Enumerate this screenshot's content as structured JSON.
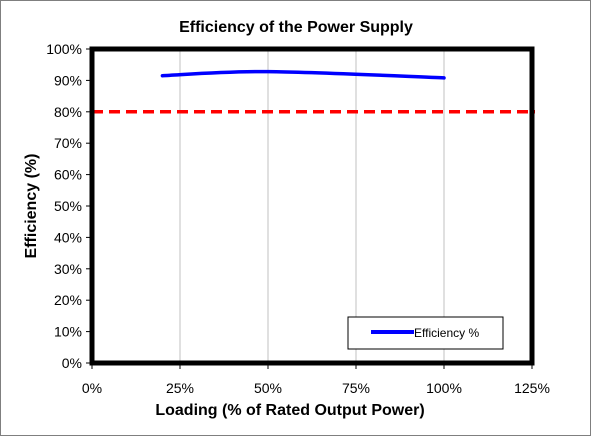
{
  "chart_data": {
    "type": "line",
    "title": "Efficiency of the Power Supply",
    "xlabel": "Loading (% of Rated Output Power)",
    "ylabel": "Efficiency (%)",
    "xlim": [
      0,
      125
    ],
    "ylim": [
      0,
      100
    ],
    "x_ticks": [
      0,
      25,
      50,
      75,
      100,
      125
    ],
    "x_tick_labels": [
      "0%",
      "25%",
      "50%",
      "75%",
      "100%",
      "125%"
    ],
    "y_ticks": [
      0,
      10,
      20,
      30,
      40,
      50,
      60,
      70,
      80,
      90,
      100
    ],
    "y_tick_labels": [
      "0%",
      "10%",
      "20%",
      "30%",
      "40%",
      "50%",
      "60%",
      "70%",
      "80%",
      "90%",
      "100%"
    ],
    "grid": "vertical",
    "series": [
      {
        "name": "Efficiency %",
        "color": "#0000ff",
        "x": [
          20,
          50,
          100
        ],
        "y": [
          91.5,
          92.8,
          90.8
        ]
      }
    ],
    "reference_lines": [
      {
        "y": 80,
        "color": "#ff0000",
        "style": "dashed"
      }
    ],
    "legend": {
      "placement": "bottom-right",
      "entries": [
        "Efficiency %"
      ]
    }
  }
}
